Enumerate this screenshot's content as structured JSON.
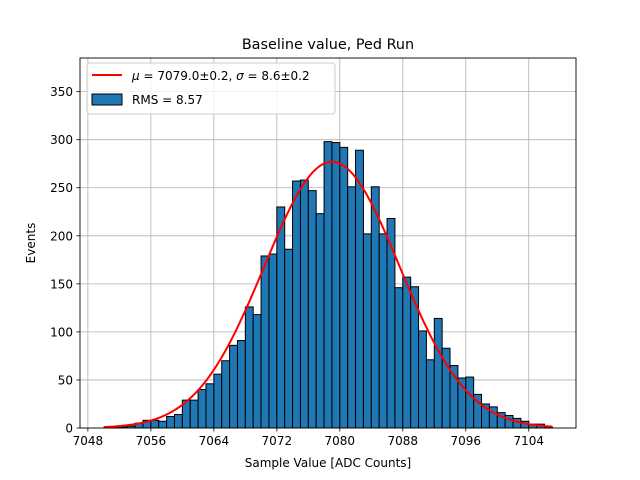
{
  "chart_data": {
    "type": "bar",
    "title": "Baseline value, Ped Run",
    "xlabel": "Sample Value [ADC Counts]",
    "ylabel": "Events",
    "xlim": [
      7047,
      7110
    ],
    "ylim": [
      0,
      385
    ],
    "xticks": [
      7048,
      7056,
      7064,
      7072,
      7080,
      7088,
      7096,
      7104
    ],
    "yticks": [
      0,
      50,
      100,
      150,
      200,
      250,
      300,
      350
    ],
    "grid": true,
    "legend_position": "top-left",
    "bin_width": 1,
    "bins_x": [
      7050,
      7051,
      7052,
      7053,
      7054,
      7055,
      7056,
      7057,
      7058,
      7059,
      7060,
      7061,
      7062,
      7063,
      7064,
      7065,
      7066,
      7067,
      7068,
      7069,
      7070,
      7071,
      7072,
      7073,
      7074,
      7075,
      7076,
      7077,
      7078,
      7079,
      7080,
      7081,
      7082,
      7083,
      7084,
      7085,
      7086,
      7087,
      7088,
      7089,
      7090,
      7091,
      7092,
      7093,
      7094,
      7095,
      7096,
      7097,
      7098,
      7099,
      7100,
      7101,
      7102,
      7103,
      7104,
      7105,
      7106
    ],
    "bins_count": [
      0,
      1,
      1,
      2,
      5,
      8,
      8,
      7,
      12,
      14,
      29,
      29,
      40,
      46,
      56,
      70,
      86,
      91,
      126,
      118,
      179,
      181,
      230,
      186,
      257,
      258,
      247,
      223,
      298,
      297,
      292,
      251,
      289,
      202,
      251,
      202,
      218,
      146,
      157,
      147,
      101,
      71,
      114,
      83,
      65,
      52,
      53,
      35,
      25,
      22,
      16,
      13,
      10,
      7,
      4,
      4,
      1
    ],
    "series": [
      {
        "name": "RMS = 8.57",
        "kind": "histogram",
        "color": "#1f77b4",
        "edgecolor": "#000000"
      },
      {
        "name": "$\\mu = 7079.0\\pm0.2$, $\\sigma = 8.6\\pm0.2$",
        "display": [
          "μ",
          " = 7079.0±0.2, ",
          "σ",
          " = 8.6±0.2"
        ],
        "kind": "gaussian_fit",
        "mu": 7079.0,
        "sigma": 8.6,
        "amplitude": 277,
        "x_range": [
          7050,
          7107
        ],
        "color": "#ff0000"
      }
    ]
  }
}
